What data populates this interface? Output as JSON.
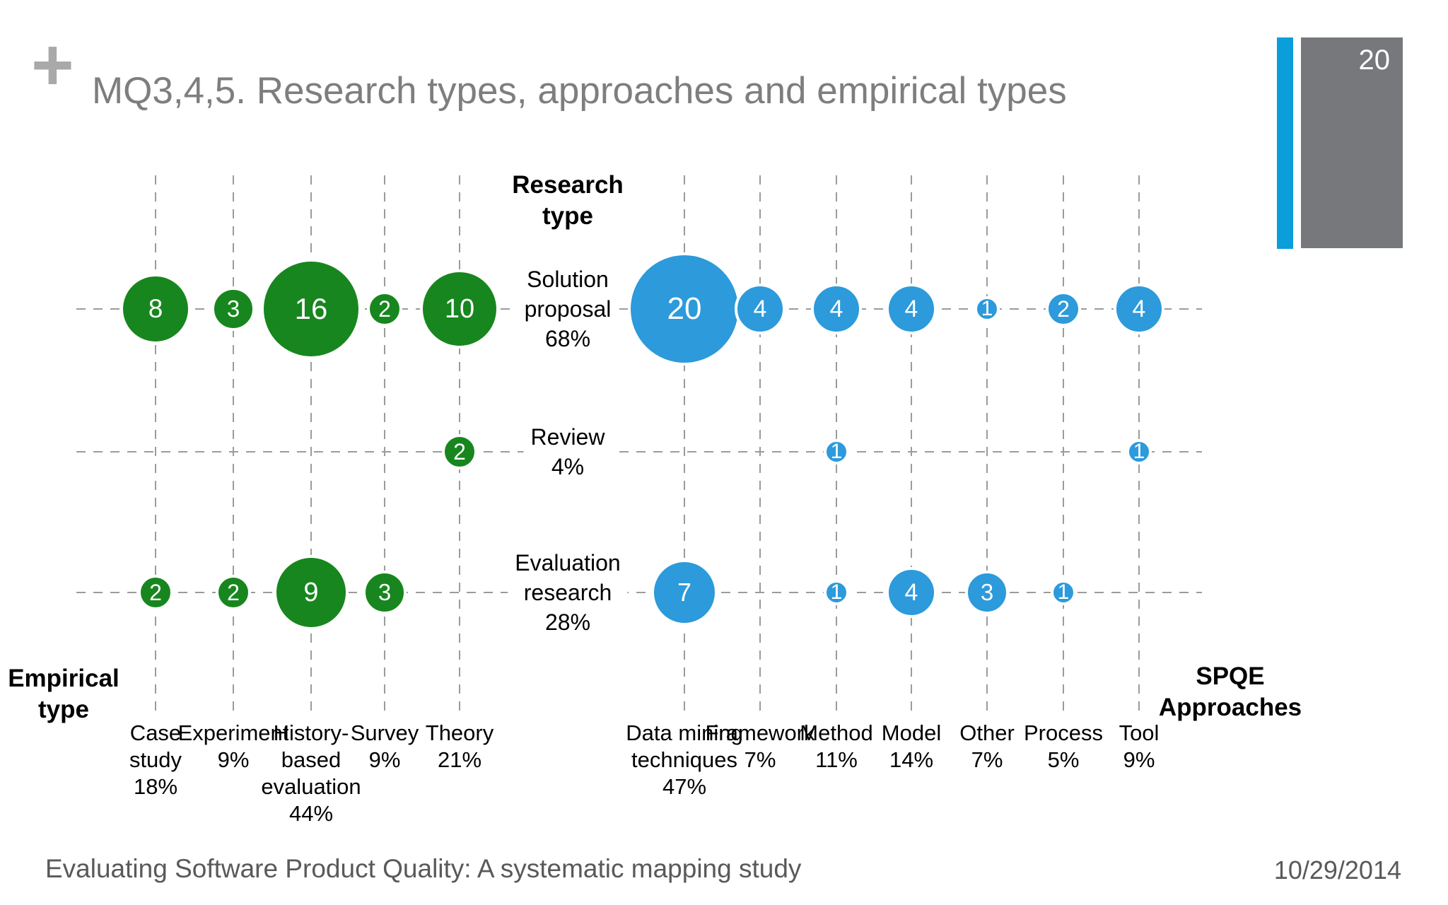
{
  "slide": {
    "title": "MQ3,4,5. Research types, approaches and empirical types",
    "plus_glyph": "+"
  },
  "page_badge": {
    "number": "20"
  },
  "headers": {
    "research_type_lines": [
      "Research",
      "type"
    ],
    "empirical_type_lines": [
      "Empirical",
      "type"
    ],
    "spqe_lines": [
      "SPQE",
      "Approaches"
    ]
  },
  "footer": {
    "left_text": "Evaluating Software Product Quality: A systematic mapping study",
    "date": "10/29/2014"
  },
  "colors": {
    "green_bubble": "#17861e",
    "blue_bubble": "#2c9adb",
    "badge_bar_blue": "#0a9edb",
    "badge_box_gray": "#77787b",
    "title_gray": "#7e7e7e",
    "footer_gray": "#595959",
    "gridline_gray": "#9b9b9b"
  },
  "chart_data": {
    "type": "bubble",
    "title": "Research types, approaches and empirical types matrix",
    "rows": [
      {
        "label": "Solution proposal",
        "pct": "68%",
        "lines": [
          "Solution",
          "proposal",
          "68%"
        ]
      },
      {
        "label": "Review",
        "pct": "4%",
        "lines": [
          "Review",
          "4%"
        ]
      },
      {
        "label": "Evaluation research",
        "pct": "28%",
        "lines": [
          "Evaluation",
          "research",
          "28%"
        ]
      }
    ],
    "left": {
      "axis_label": "Empirical type",
      "categories": [
        "Case study",
        "Experiment",
        "History-based evaluation",
        "Survey",
        "Theory"
      ],
      "percentages": [
        "18%",
        "9%",
        "44%",
        "9%",
        "21%"
      ],
      "label_lines": [
        [
          "Case",
          "study",
          "18%"
        ],
        [
          "Experiment",
          "9%"
        ],
        [
          "History-",
          "based",
          "evaluation",
          "44%"
        ],
        [
          "Survey",
          "9%"
        ],
        [
          "Theory",
          "21%"
        ]
      ],
      "matrix": [
        [
          8,
          3,
          16,
          2,
          10
        ],
        [
          null,
          null,
          null,
          null,
          2
        ],
        [
          2,
          2,
          9,
          3,
          null
        ]
      ]
    },
    "right": {
      "axis_label": "SPQE Approaches",
      "categories": [
        "Data mining techniques",
        "Framework",
        "Method",
        "Model",
        "Other",
        "Process",
        "Tool"
      ],
      "percentages": [
        "47%",
        "7%",
        "11%",
        "14%",
        "7%",
        "5%",
        "9%"
      ],
      "label_lines": [
        [
          "Data mining",
          "techniques",
          "47%"
        ],
        [
          "Framework",
          "7%"
        ],
        [
          "Method",
          "11%"
        ],
        [
          "Model",
          "14%"
        ],
        [
          "Other",
          "7%"
        ],
        [
          "Process",
          "5%"
        ],
        [
          "Tool",
          "9%"
        ]
      ],
      "matrix": [
        [
          20,
          4,
          4,
          4,
          1,
          2,
          4
        ],
        [
          null,
          null,
          1,
          null,
          null,
          null,
          1
        ],
        [
          7,
          null,
          1,
          4,
          3,
          1,
          null
        ]
      ]
    }
  }
}
